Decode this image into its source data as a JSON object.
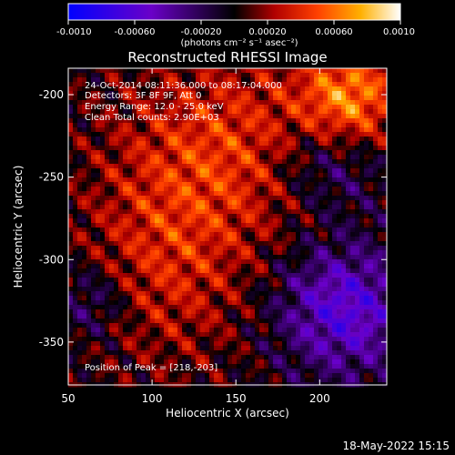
{
  "chart_data": {
    "type": "heatmap",
    "title": "Reconstructed RHESSI Image",
    "xlabel": "Heliocentric X (arcsec)",
    "ylabel": "Heliocentric Y (arcsec)",
    "xlim": [
      50,
      240
    ],
    "ylim": [
      -376,
      -184
    ],
    "xticks": [
      50,
      100,
      150,
      200
    ],
    "yticks": [
      -200,
      -250,
      -300,
      -350
    ],
    "colorbar": {
      "ticks": [
        "-0.0010",
        "-0.00060",
        "-0.00020",
        "0.00020",
        "0.00060",
        "0.0010"
      ],
      "range": [
        -0.001,
        0.001
      ],
      "units_label": "(photons cm⁻² s⁻¹ asec⁻²)",
      "colors": [
        "#0000ff",
        "#6a00c8",
        "#000000",
        "#b00000",
        "#ff4000",
        "#ffb000",
        "#ffffff"
      ]
    },
    "annotations": [
      "24-Oct-2014 08:11:36.000 to 08:17:04.000",
      "Detectors: 3F 8F 9F, Att 0",
      "Energy Range: 12.0 - 25.0 keV",
      "Clean     Total counts: 2.90E+03"
    ],
    "peak_text": "Position of Peak = [218,-203]",
    "peak": [
      218,
      -203
    ],
    "grid": false
  },
  "footer": {
    "timestamp": "18-May-2022 15:15"
  }
}
